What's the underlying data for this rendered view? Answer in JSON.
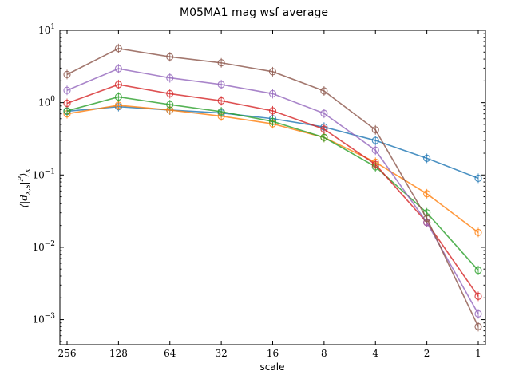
{
  "chart_data": {
    "type": "line",
    "title": "M05MA1 mag wsf average",
    "xlabel": "scale",
    "ylabel": "⟨|d",
    "ylabel_sub": "x,s",
    "ylabel_mid": "|",
    "ylabel_sup": "P",
    "ylabel_end": "⟩",
    "ylabel_sub2": "x",
    "x_tick_labels": [
      "256",
      "128",
      "64",
      "32",
      "16",
      "8",
      "4",
      "2",
      "1"
    ],
    "x_scale": "log2-reversed",
    "y_scale": "log",
    "ylim": [
      0.00045,
      10
    ],
    "y_ticks": [
      {
        "value": 0.001,
        "base": "10",
        "exp": "−3"
      },
      {
        "value": 0.01,
        "base": "10",
        "exp": "−2"
      },
      {
        "value": 0.1,
        "base": "10",
        "exp": "−1"
      },
      {
        "value": 1,
        "base": "10",
        "exp": "0"
      },
      {
        "value": 10,
        "base": "10",
        "exp": "1"
      }
    ],
    "x": [
      256,
      128,
      64,
      32,
      16,
      8,
      4,
      2,
      1
    ],
    "series": [
      {
        "color": "#1f77b4",
        "values": [
          0.76,
          0.88,
          0.79,
          0.72,
          0.6,
          0.46,
          0.3,
          0.17,
          0.09
        ]
      },
      {
        "color": "#ff7f0e",
        "values": [
          0.7,
          0.92,
          0.79,
          0.65,
          0.51,
          0.33,
          0.15,
          0.055,
          0.016
        ]
      },
      {
        "color": "#2ca02c",
        "values": [
          0.77,
          1.2,
          0.94,
          0.75,
          0.55,
          0.33,
          0.13,
          0.03,
          0.0048
        ]
      },
      {
        "color": "#d62728",
        "values": [
          0.98,
          1.78,
          1.33,
          1.06,
          0.77,
          0.43,
          0.14,
          0.022,
          0.0021
        ]
      },
      {
        "color": "#9467bd",
        "values": [
          1.48,
          2.95,
          2.2,
          1.78,
          1.33,
          0.71,
          0.22,
          0.022,
          0.0012
        ]
      },
      {
        "color": "#8c564b",
        "values": [
          2.45,
          5.6,
          4.3,
          3.55,
          2.68,
          1.45,
          0.42,
          0.025,
          0.0008
        ]
      }
    ],
    "line_alpha": 0.8,
    "grid": false,
    "legend": "none"
  }
}
